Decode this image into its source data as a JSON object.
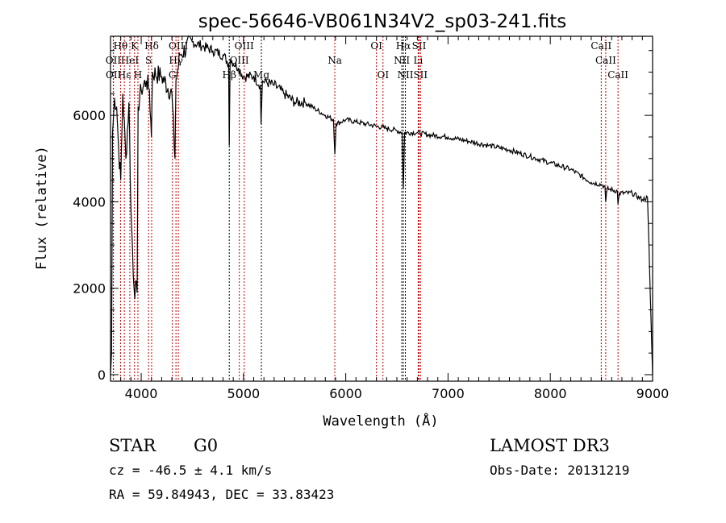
{
  "chart_data": {
    "type": "line",
    "title": "spec-56646-VB061N34V2_sp03-241.fits",
    "xlabel": "Wavelength (Å)",
    "ylabel": "Flux (relative)",
    "xlim": [
      3700,
      9000
    ],
    "ylim": [
      -150,
      7830
    ],
    "xticks": [
      4000,
      5000,
      6000,
      7000,
      8000,
      9000
    ],
    "yticks": [
      0,
      2000,
      4000,
      6000
    ],
    "grid": false,
    "series": [
      {
        "name": "spectrum",
        "x": [
          3700,
          3710,
          3720,
          3740,
          3760,
          3780,
          3800,
          3820,
          3850,
          3880,
          3900,
          3930,
          3960,
          3970,
          4000,
          4050,
          4080,
          4100,
          4110,
          4200,
          4300,
          4330,
          4340,
          4380,
          4500,
          4600,
          4700,
          4800,
          4855,
          4861,
          4870,
          4950,
          5000,
          5100,
          5165,
          5172,
          5185,
          5300,
          5400,
          5500,
          5600,
          5700,
          5800,
          5880,
          5893,
          5905,
          6000,
          6100,
          6200,
          6300,
          6400,
          6500,
          6550,
          6563,
          6575,
          6700,
          6800,
          7000,
          7200,
          7400,
          7600,
          7800,
          8000,
          8200,
          8400,
          8500,
          8535,
          8542,
          8555,
          8655,
          8662,
          8675,
          8800,
          8900,
          8950,
          8970,
          9000
        ],
        "y": [
          0,
          500,
          5600,
          6400,
          6200,
          5200,
          4500,
          6500,
          5000,
          6300,
          3800,
          2000,
          1900,
          6200,
          6600,
          6800,
          6600,
          5500,
          7000,
          6900,
          6500,
          5000,
          6800,
          7400,
          7700,
          7600,
          7500,
          7400,
          7200,
          5300,
          7300,
          7100,
          6900,
          6900,
          6700,
          5800,
          6800,
          6700,
          6500,
          6300,
          6300,
          6150,
          6000,
          5900,
          5100,
          5800,
          5900,
          5850,
          5800,
          5750,
          5700,
          5650,
          5600,
          4300,
          5600,
          5600,
          5550,
          5500,
          5400,
          5300,
          5200,
          5050,
          4900,
          4750,
          4450,
          4400,
          4350,
          4000,
          4300,
          4250,
          3950,
          4200,
          4200,
          4050,
          4100,
          2500,
          0
        ]
      }
    ],
    "lines": [
      {
        "label": "Hθ",
        "wave": 3798,
        "row": 0,
        "color": "#c00000"
      },
      {
        "label": "K",
        "wave": 3934,
        "row": 0,
        "color": "#c00000"
      },
      {
        "label": "Hδ",
        "wave": 4102,
        "row": 0,
        "color": "#c00000"
      },
      {
        "label": "OIII",
        "wave": 4363,
        "row": 0,
        "color": "#c00000"
      },
      {
        "label": "OIII",
        "wave": 5007,
        "row": 0,
        "color": "#c00000"
      },
      {
        "label": "OI",
        "wave": 6300,
        "row": 0,
        "color": "#c00000"
      },
      {
        "label": "Hα",
        "wave": 6563,
        "row": 0,
        "color": "#000000"
      },
      {
        "label": "SII",
        "wave": 6717,
        "row": 0,
        "color": "#c00000"
      },
      {
        "label": "CaII",
        "wave": 8498,
        "row": 0,
        "color": "#c00000"
      },
      {
        "label": "OII",
        "wave": 3727,
        "row": 1,
        "color": "#c00000"
      },
      {
        "label": "HeI",
        "wave": 3889,
        "row": 1,
        "color": "#c00000"
      },
      {
        "label": "S",
        "wave": 4072,
        "row": 1,
        "color": "#c00000"
      },
      {
        "label": "Hγ",
        "wave": 4340,
        "row": 1,
        "color": "#c00000"
      },
      {
        "label": "OIII",
        "wave": 4959,
        "row": 1,
        "color": "#c00000"
      },
      {
        "label": "Na",
        "wave": 5893,
        "row": 1,
        "color": "#c00000"
      },
      {
        "label": "NII",
        "wave": 6548,
        "row": 1,
        "color": "#000000"
      },
      {
        "label": "Li",
        "wave": 6708,
        "row": 1,
        "color": "#c00000"
      },
      {
        "label": "CaII",
        "wave": 8542,
        "row": 1,
        "color": "#c00000"
      },
      {
        "label": "OII",
        "wave": 3729,
        "row": 2,
        "color": "#c00000"
      },
      {
        "label": "Hε",
        "wave": 3835,
        "row": 2,
        "color": "#c00000"
      },
      {
        "label": "H",
        "wave": 3968,
        "row": 2,
        "color": "#c00000"
      },
      {
        "label": "G",
        "wave": 4305,
        "row": 2,
        "color": "#c00000"
      },
      {
        "label": "Hβ",
        "wave": 4861,
        "row": 2,
        "color": "#000000"
      },
      {
        "label": "Mg",
        "wave": 5175,
        "row": 2,
        "color": "#000000"
      },
      {
        "label": "OI",
        "wave": 6364,
        "row": 2,
        "color": "#c00000"
      },
      {
        "label": "NII",
        "wave": 6583,
        "row": 2,
        "color": "#000000"
      },
      {
        "label": "SII",
        "wave": 6731,
        "row": 2,
        "color": "#c00000"
      },
      {
        "label": "CaII",
        "wave": 8662,
        "row": 2,
        "color": "#c00000"
      }
    ]
  },
  "info": {
    "class": "STAR",
    "subclass": "G0",
    "survey": "LAMOST DR3",
    "cz": "cz = -46.5 ± 4.1 km/s",
    "obs_date": "Obs-Date: 20131219",
    "coords": "RA =  59.84943, DEC =  33.83423"
  }
}
